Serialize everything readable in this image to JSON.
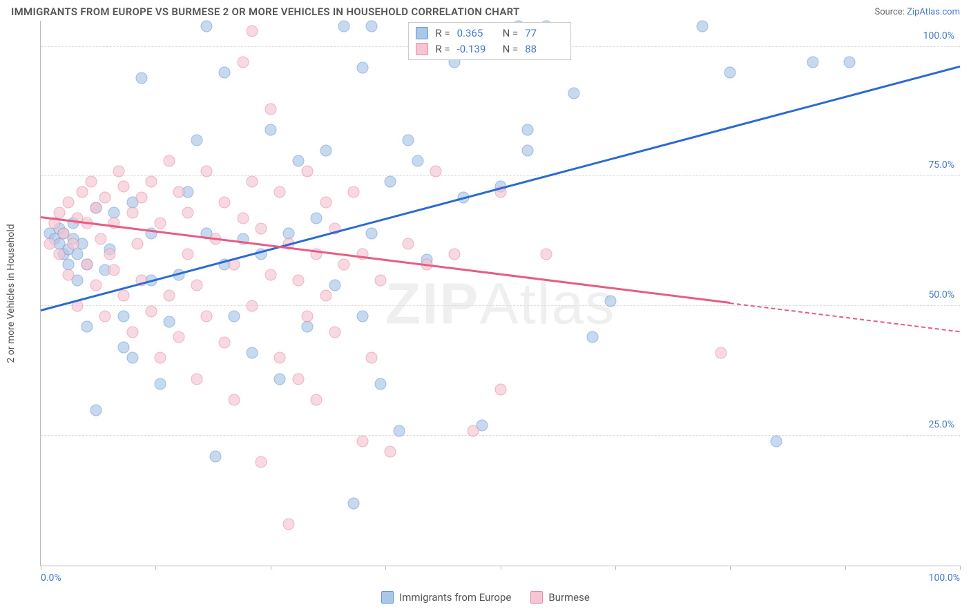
{
  "header": {
    "title": "IMMIGRANTS FROM EUROPE VS BURMESE 2 OR MORE VEHICLES IN HOUSEHOLD CORRELATION CHART",
    "source_prefix": "Source: ",
    "source_name": "ZipAtlas.com"
  },
  "chart": {
    "type": "scatter",
    "ylabel": "2 or more Vehicles in Household",
    "watermark": "ZIPAtlas",
    "xlim": [
      0,
      100
    ],
    "ylim": [
      0,
      105
    ],
    "xtick_positions": [
      0,
      12.5,
      25,
      37.5,
      50,
      62.5,
      75,
      87.5,
      100
    ],
    "xtick_labels_visible": {
      "0": "0.0%",
      "100": "100.0%"
    },
    "ytick_positions": [
      25,
      50,
      75,
      100
    ],
    "ytick_labels": [
      "25.0%",
      "50.0%",
      "75.0%",
      "100.0%"
    ],
    "grid_color": "#dddddd",
    "axis_color": "#bbbbbb",
    "background": "#ffffff",
    "marker_size": 17,
    "marker_opacity": 0.65,
    "series": [
      {
        "name": "Immigrants from Europe",
        "fill_color": "#aac6e8",
        "stroke_color": "#6698d6",
        "line_color": "#2b6ad0",
        "R": "0.365",
        "N": "77",
        "regression": {
          "x1": 0,
          "y1": 49,
          "x2": 100,
          "y2": 96,
          "solid_to_x": 100
        },
        "points": [
          [
            1,
            64
          ],
          [
            1.5,
            63
          ],
          [
            2,
            62
          ],
          [
            2,
            65
          ],
          [
            2.5,
            60
          ],
          [
            2.5,
            64
          ],
          [
            3,
            58
          ],
          [
            3,
            61
          ],
          [
            3.5,
            63
          ],
          [
            3.5,
            66
          ],
          [
            4,
            55
          ],
          [
            4,
            60
          ],
          [
            4.5,
            62
          ],
          [
            5,
            46
          ],
          [
            5,
            58
          ],
          [
            6,
            30
          ],
          [
            6,
            69
          ],
          [
            7,
            57
          ],
          [
            7.5,
            61
          ],
          [
            8,
            68
          ],
          [
            9,
            42
          ],
          [
            9,
            48
          ],
          [
            10,
            40
          ],
          [
            10,
            70
          ],
          [
            11,
            94
          ],
          [
            12,
            55
          ],
          [
            12,
            64
          ],
          [
            13,
            35
          ],
          [
            14,
            47
          ],
          [
            15,
            56
          ],
          [
            16,
            72
          ],
          [
            17,
            82
          ],
          [
            18,
            64
          ],
          [
            18,
            104
          ],
          [
            19,
            21
          ],
          [
            20,
            58
          ],
          [
            20,
            95
          ],
          [
            21,
            48
          ],
          [
            22,
            63
          ],
          [
            23,
            41
          ],
          [
            24,
            60
          ],
          [
            25,
            84
          ],
          [
            26,
            36
          ],
          [
            27,
            64
          ],
          [
            28,
            78
          ],
          [
            29,
            46
          ],
          [
            30,
            67
          ],
          [
            31,
            80
          ],
          [
            32,
            54
          ],
          [
            33,
            104
          ],
          [
            34,
            12
          ],
          [
            35,
            48
          ],
          [
            35,
            96
          ],
          [
            36,
            64
          ],
          [
            36,
            104
          ],
          [
            37,
            35
          ],
          [
            38,
            74
          ],
          [
            39,
            26
          ],
          [
            40,
            82
          ],
          [
            41,
            78
          ],
          [
            42,
            59
          ],
          [
            45,
            97
          ],
          [
            46,
            71
          ],
          [
            48,
            27
          ],
          [
            50,
            73
          ],
          [
            52,
            104
          ],
          [
            53,
            84
          ],
          [
            53,
            80
          ],
          [
            55,
            104
          ],
          [
            58,
            91
          ],
          [
            60,
            44
          ],
          [
            62,
            51
          ],
          [
            72,
            104
          ],
          [
            75,
            95
          ],
          [
            80,
            24
          ],
          [
            84,
            97
          ],
          [
            88,
            97
          ]
        ]
      },
      {
        "name": "Burmese",
        "fill_color": "#f5c6d2",
        "stroke_color": "#e88aa3",
        "line_color": "#e85b82",
        "R": "-0.139",
        "N": "88",
        "regression": {
          "x1": 0,
          "y1": 67,
          "x2": 100,
          "y2": 45,
          "solid_to_x": 75
        },
        "points": [
          [
            1,
            62
          ],
          [
            1.5,
            66
          ],
          [
            2,
            60
          ],
          [
            2,
            68
          ],
          [
            2.5,
            64
          ],
          [
            3,
            56
          ],
          [
            3,
            70
          ],
          [
            3.5,
            62
          ],
          [
            4,
            50
          ],
          [
            4,
            67
          ],
          [
            4.5,
            72
          ],
          [
            5,
            58
          ],
          [
            5,
            66
          ],
          [
            5.5,
            74
          ],
          [
            6,
            54
          ],
          [
            6,
            69
          ],
          [
            6.5,
            63
          ],
          [
            7,
            48
          ],
          [
            7,
            71
          ],
          [
            7.5,
            60
          ],
          [
            8,
            57
          ],
          [
            8,
            66
          ],
          [
            8.5,
            76
          ],
          [
            9,
            52
          ],
          [
            9,
            73
          ],
          [
            10,
            45
          ],
          [
            10,
            68
          ],
          [
            10.5,
            62
          ],
          [
            11,
            55
          ],
          [
            11,
            71
          ],
          [
            12,
            49
          ],
          [
            12,
            74
          ],
          [
            13,
            40
          ],
          [
            13,
            66
          ],
          [
            14,
            52
          ],
          [
            14,
            78
          ],
          [
            15,
            44
          ],
          [
            15,
            72
          ],
          [
            16,
            60
          ],
          [
            16,
            68
          ],
          [
            17,
            36
          ],
          [
            17,
            54
          ],
          [
            18,
            48
          ],
          [
            18,
            76
          ],
          [
            19,
            63
          ],
          [
            20,
            43
          ],
          [
            20,
            70
          ],
          [
            21,
            32
          ],
          [
            21,
            58
          ],
          [
            22,
            67
          ],
          [
            22,
            97
          ],
          [
            23,
            50
          ],
          [
            23,
            74
          ],
          [
            23,
            103
          ],
          [
            24,
            20
          ],
          [
            24,
            65
          ],
          [
            25,
            56
          ],
          [
            25,
            88
          ],
          [
            26,
            40
          ],
          [
            26,
            72
          ],
          [
            27,
            8
          ],
          [
            27,
            62
          ],
          [
            28,
            36
          ],
          [
            28,
            55
          ],
          [
            29,
            48
          ],
          [
            29,
            76
          ],
          [
            30,
            32
          ],
          [
            30,
            60
          ],
          [
            31,
            52
          ],
          [
            31,
            70
          ],
          [
            32,
            45
          ],
          [
            32,
            65
          ],
          [
            33,
            58
          ],
          [
            34,
            72
          ],
          [
            35,
            24
          ],
          [
            35,
            60
          ],
          [
            36,
            40
          ],
          [
            37,
            55
          ],
          [
            38,
            22
          ],
          [
            40,
            62
          ],
          [
            42,
            58
          ],
          [
            43,
            76
          ],
          [
            45,
            60
          ],
          [
            47,
            26
          ],
          [
            50,
            34
          ],
          [
            50,
            72
          ],
          [
            55,
            60
          ],
          [
            74,
            41
          ]
        ]
      }
    ]
  },
  "stats_box": {
    "r_label": "R =",
    "n_label": "N ="
  },
  "bottom_legend": {
    "items": [
      "Immigrants from Europe",
      "Burmese"
    ]
  }
}
